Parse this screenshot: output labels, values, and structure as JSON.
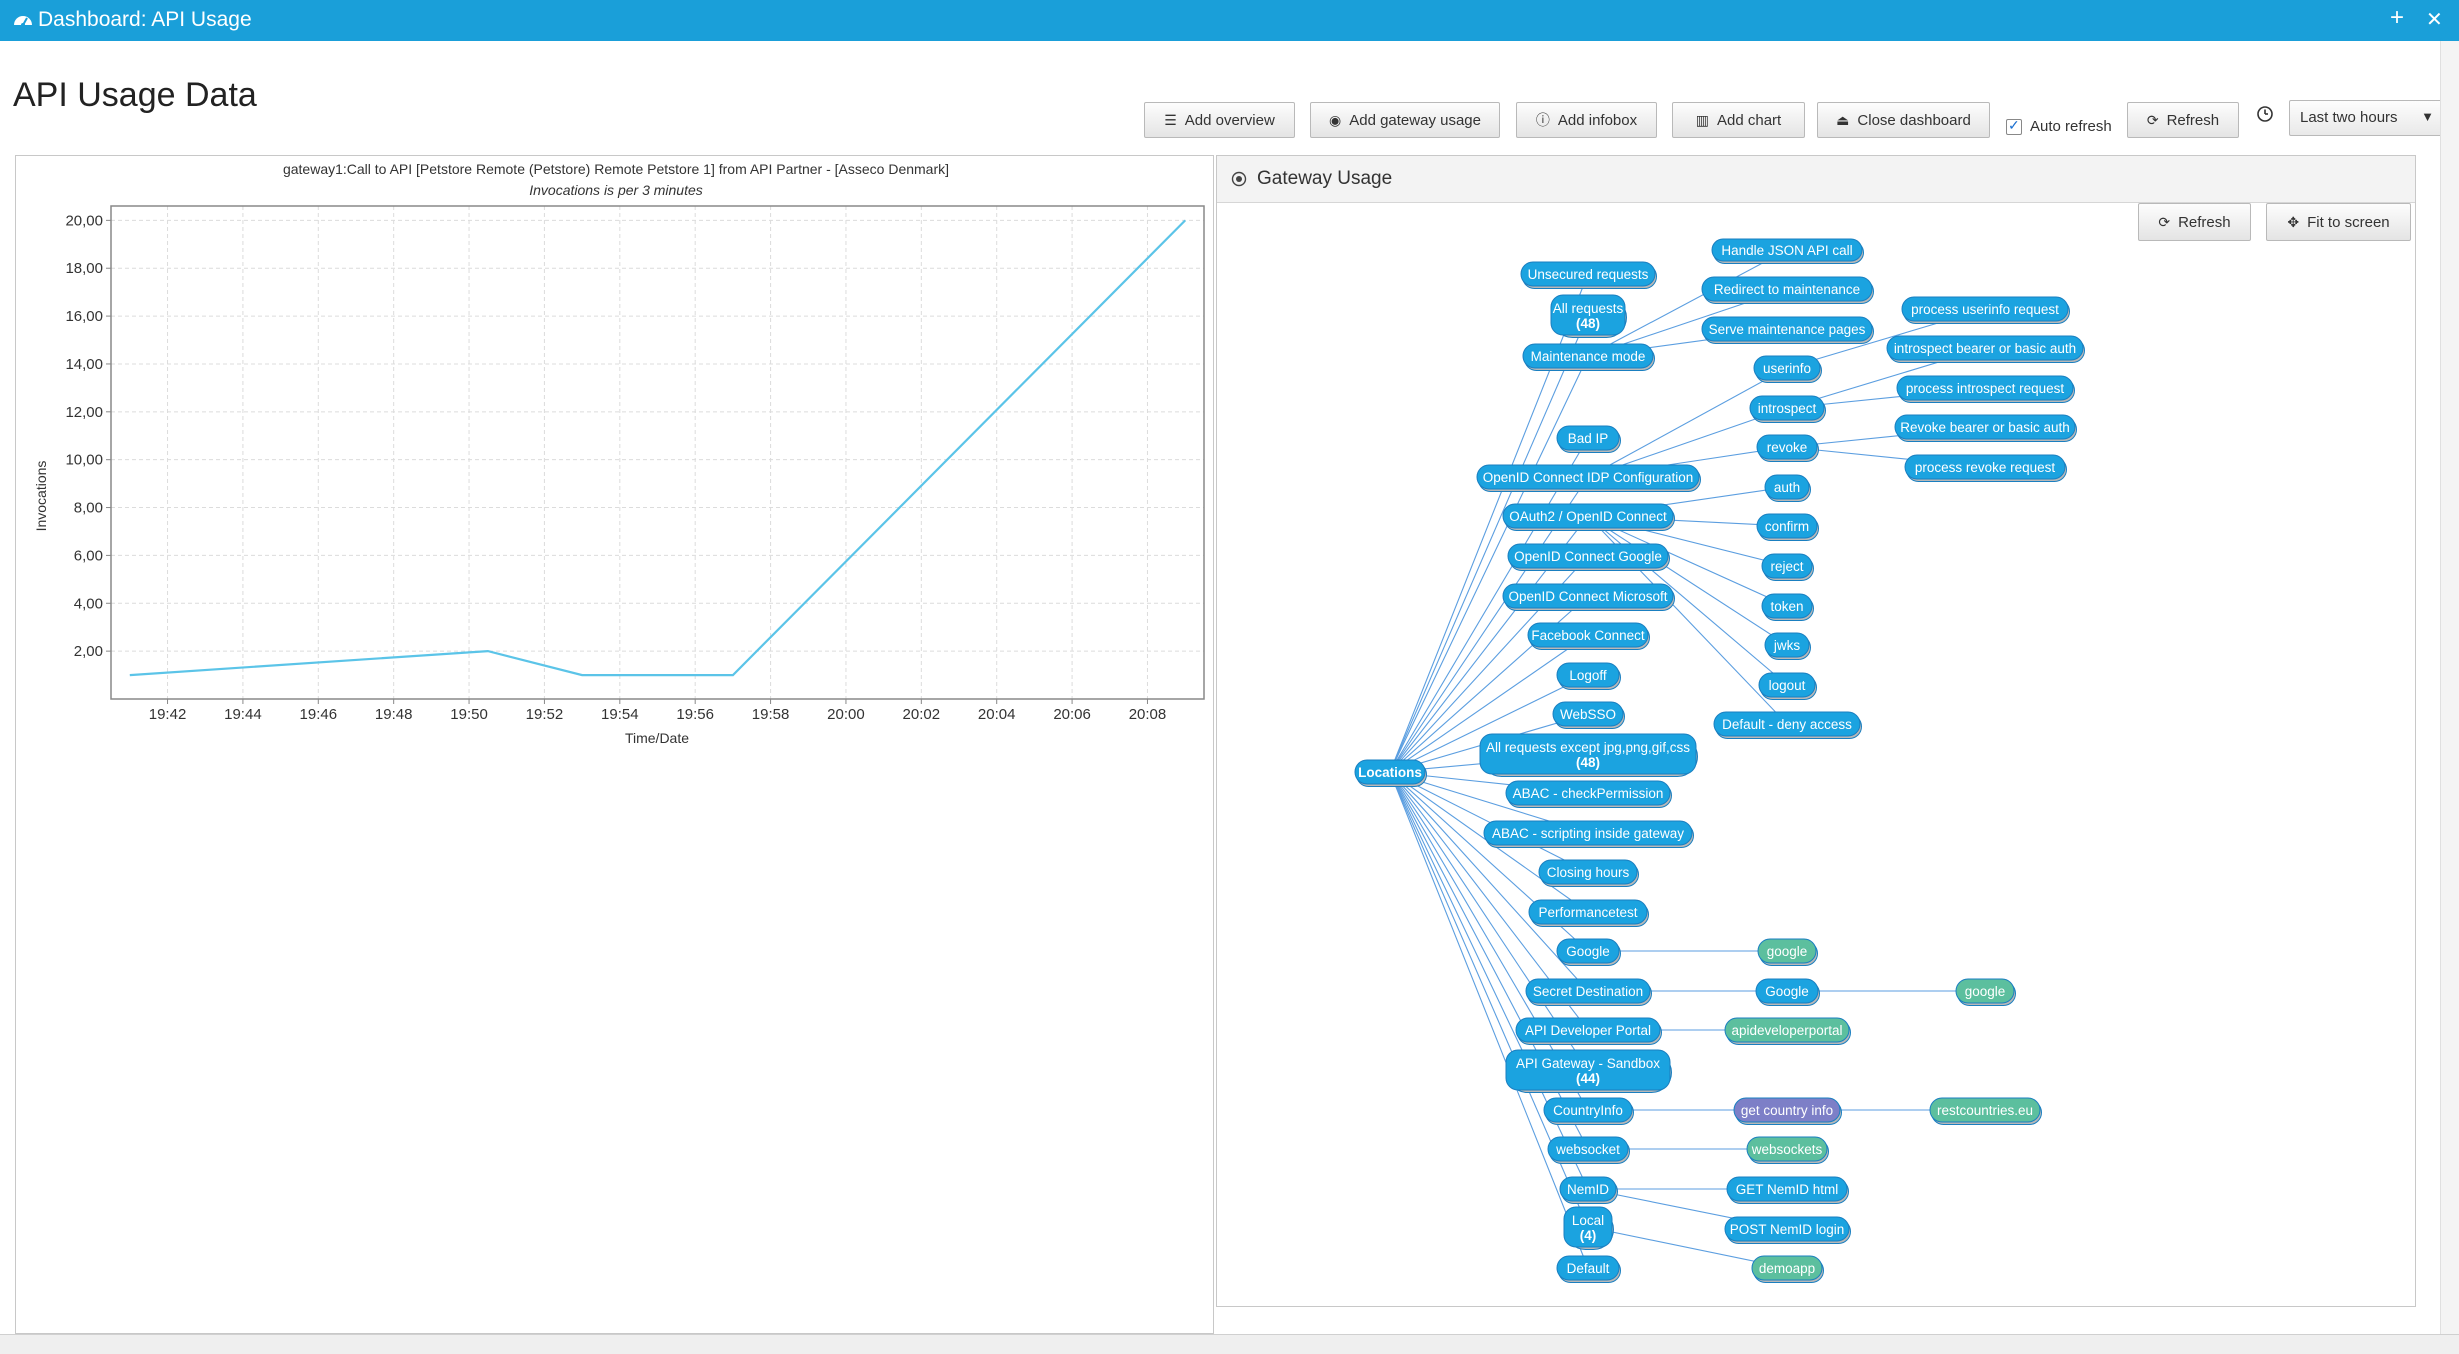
{
  "titlebar": {
    "title": "Dashboard: API Usage",
    "plus": "+",
    "close": "✕"
  },
  "page_title": "API Usage Data",
  "toolbar": {
    "add_overview": "Add overview",
    "add_gateway_usage": "Add gateway usage",
    "add_infobox": "Add infobox",
    "add_chart": "Add chart",
    "close_dashboard": "Close dashboard",
    "auto_refresh": "Auto refresh",
    "auto_refresh_checked": true,
    "refresh": "Refresh",
    "range_selected": "Last two hours"
  },
  "chart_data": {
    "type": "line",
    "title": "gateway1:Call to API [Petstore Remote (Petstore) Remote Petstore 1] from API Partner -  [Asseco Denmark]",
    "subtitle": "Invocations is per 3 minutes",
    "xlabel": "Time/Date",
    "ylabel": "Invocations",
    "x_ticks": [
      "19:42",
      "19:44",
      "19:46",
      "19:48",
      "19:50",
      "19:52",
      "19:54",
      "19:56",
      "19:58",
      "20:00",
      "20:02",
      "20:04",
      "20:06",
      "20:08"
    ],
    "y_ticks": [
      "2,00",
      "4,00",
      "6,00",
      "8,00",
      "10,00",
      "12,00",
      "14,00",
      "16,00",
      "18,00",
      "20,00"
    ],
    "xlim": [
      "19:40:30",
      "20:09:30"
    ],
    "ylim": [
      0,
      20.6
    ],
    "grid": true,
    "series": [
      {
        "x": [
          "19:41",
          "19:50:30",
          "19:53",
          "19:57",
          "20:09"
        ],
        "y": [
          1,
          2,
          1,
          1,
          20
        ]
      }
    ],
    "line_color": "#5bc4e8"
  },
  "gateway_usage": {
    "title": "Gateway Usage",
    "refresh": "Refresh",
    "fit_to_screen": "Fit to screen",
    "colors": {
      "location": "#1ba3e0",
      "api": "#23b0c8",
      "target": "#5cbf9e",
      "service": "#7d7fc7"
    },
    "nodes": [
      {
        "id": "locations",
        "label": "Locations",
        "kind": "root"
      },
      {
        "id": "unsecured",
        "label": "Unsecured requests",
        "kind": "location"
      },
      {
        "id": "allreq",
        "label": "All requests",
        "count": "(48)",
        "kind": "location"
      },
      {
        "id": "maint",
        "label": "Maintenance mode",
        "kind": "location"
      },
      {
        "id": "badip",
        "label": "Bad IP",
        "kind": "location"
      },
      {
        "id": "oidc_idp",
        "label": "OpenID Connect IDP Configuration",
        "kind": "location"
      },
      {
        "id": "oauth2",
        "label": "OAuth2 / OpenID Connect",
        "kind": "location"
      },
      {
        "id": "oidc_google",
        "label": "OpenID Connect Google",
        "kind": "location"
      },
      {
        "id": "oidc_ms",
        "label": "OpenID Connect Microsoft",
        "kind": "location"
      },
      {
        "id": "fb",
        "label": "Facebook Connect",
        "kind": "location"
      },
      {
        "id": "logoff",
        "label": "Logoff",
        "kind": "location"
      },
      {
        "id": "websso",
        "label": "WebSSO",
        "kind": "location"
      },
      {
        "id": "allexcept",
        "label": "All requests except jpg,png,gif,css",
        "count": "(48)",
        "kind": "location"
      },
      {
        "id": "abac1",
        "label": "ABAC - checkPermission",
        "kind": "location"
      },
      {
        "id": "abac2",
        "label": "ABAC - scripting inside gateway",
        "kind": "location"
      },
      {
        "id": "closing",
        "label": "Closing hours",
        "kind": "location"
      },
      {
        "id": "perf",
        "label": "Performancetest",
        "kind": "location"
      },
      {
        "id": "google_loc",
        "label": "Google",
        "kind": "location"
      },
      {
        "id": "secret",
        "label": "Secret Destination",
        "kind": "location"
      },
      {
        "id": "devportal",
        "label": "API Developer Portal",
        "kind": "location"
      },
      {
        "id": "sandbox",
        "label": "API Gateway - Sandbox",
        "count": "(44)",
        "kind": "location"
      },
      {
        "id": "countryinfo",
        "label": "CountryInfo",
        "kind": "location"
      },
      {
        "id": "websocket",
        "label": "websocket",
        "kind": "location"
      },
      {
        "id": "nemid",
        "label": "NemID",
        "kind": "location"
      },
      {
        "id": "local",
        "label": "Local",
        "count": "(4)",
        "kind": "location"
      },
      {
        "id": "default",
        "label": "Default",
        "kind": "location"
      },
      {
        "id": "handlejson",
        "label": "Handle JSON API call",
        "kind": "location"
      },
      {
        "id": "redirect",
        "label": "Redirect to maintenance",
        "kind": "location"
      },
      {
        "id": "servemaint",
        "label": "Serve maintenance pages",
        "kind": "location"
      },
      {
        "id": "userinfo",
        "label": "userinfo",
        "kind": "location"
      },
      {
        "id": "introspect",
        "label": "introspect",
        "kind": "location"
      },
      {
        "id": "revoke",
        "label": "revoke",
        "kind": "location"
      },
      {
        "id": "auth",
        "label": "auth",
        "kind": "location"
      },
      {
        "id": "confirm",
        "label": "confirm",
        "kind": "location"
      },
      {
        "id": "reject",
        "label": "reject",
        "kind": "location"
      },
      {
        "id": "token",
        "label": "token",
        "kind": "location"
      },
      {
        "id": "jwks",
        "label": "jwks",
        "kind": "location"
      },
      {
        "id": "logout",
        "label": "logout",
        "kind": "location"
      },
      {
        "id": "deny",
        "label": "Default - deny access",
        "kind": "location"
      },
      {
        "id": "google_sub",
        "label": "Google",
        "kind": "location"
      },
      {
        "id": "getnemid",
        "label": "GET NemID html",
        "kind": "location"
      },
      {
        "id": "postnemid",
        "label": "POST NemID login",
        "kind": "location"
      },
      {
        "id": "p_userinfo",
        "label": "process userinfo request",
        "kind": "location"
      },
      {
        "id": "p_introspect_auth",
        "label": "introspect bearer or basic auth",
        "kind": "location"
      },
      {
        "id": "p_introspect",
        "label": "process introspect request",
        "kind": "location"
      },
      {
        "id": "p_revoke_auth",
        "label": "Revoke bearer or basic auth",
        "kind": "location"
      },
      {
        "id": "p_revoke",
        "label": "process revoke request",
        "kind": "location"
      },
      {
        "id": "t_google1",
        "label": "google",
        "kind": "target"
      },
      {
        "id": "t_google2",
        "label": "google",
        "kind": "target"
      },
      {
        "id": "t_devportal",
        "label": "apideveloperportal",
        "kind": "target"
      },
      {
        "id": "s_getcountry",
        "label": "get country info",
        "kind": "service"
      },
      {
        "id": "t_restcountries",
        "label": "restcountries.eu",
        "kind": "target"
      },
      {
        "id": "t_websockets",
        "label": "websockets",
        "kind": "target"
      },
      {
        "id": "t_demoapp",
        "label": "demoapp",
        "kind": "target"
      }
    ],
    "edges": [
      [
        "locations",
        "unsecured"
      ],
      [
        "locations",
        "allreq"
      ],
      [
        "locations",
        "maint"
      ],
      [
        "locations",
        "badip"
      ],
      [
        "locations",
        "oidc_idp"
      ],
      [
        "locations",
        "oauth2"
      ],
      [
        "locations",
        "oidc_google"
      ],
      [
        "locations",
        "oidc_ms"
      ],
      [
        "locations",
        "fb"
      ],
      [
        "locations",
        "logoff"
      ],
      [
        "locations",
        "websso"
      ],
      [
        "locations",
        "allexcept"
      ],
      [
        "locations",
        "abac1"
      ],
      [
        "locations",
        "abac2"
      ],
      [
        "locations",
        "closing"
      ],
      [
        "locations",
        "perf"
      ],
      [
        "locations",
        "google_loc"
      ],
      [
        "locations",
        "secret"
      ],
      [
        "locations",
        "devportal"
      ],
      [
        "locations",
        "sandbox"
      ],
      [
        "locations",
        "countryinfo"
      ],
      [
        "locations",
        "websocket"
      ],
      [
        "locations",
        "nemid"
      ],
      [
        "locations",
        "local"
      ],
      [
        "locations",
        "default"
      ],
      [
        "maint",
        "handlejson"
      ],
      [
        "maint",
        "redirect"
      ],
      [
        "maint",
        "servemaint"
      ],
      [
        "oidc_idp",
        "userinfo"
      ],
      [
        "oidc_idp",
        "introspect"
      ],
      [
        "oidc_idp",
        "revoke"
      ],
      [
        "oauth2",
        "auth"
      ],
      [
        "oauth2",
        "confirm"
      ],
      [
        "oauth2",
        "reject"
      ],
      [
        "oauth2",
        "token"
      ],
      [
        "oauth2",
        "jwks"
      ],
      [
        "oauth2",
        "logout"
      ],
      [
        "oauth2",
        "deny"
      ],
      [
        "userinfo",
        "p_userinfo"
      ],
      [
        "introspect",
        "p_introspect_auth"
      ],
      [
        "introspect",
        "p_introspect"
      ],
      [
        "revoke",
        "p_revoke_auth"
      ],
      [
        "revoke",
        "p_revoke"
      ],
      [
        "google_loc",
        "t_google1"
      ],
      [
        "secret",
        "google_sub"
      ],
      [
        "google_sub",
        "t_google2"
      ],
      [
        "devportal",
        "t_devportal"
      ],
      [
        "countryinfo",
        "s_getcountry"
      ],
      [
        "s_getcountry",
        "t_restcountries"
      ],
      [
        "websocket",
        "t_websockets"
      ],
      [
        "nemid",
        "getnemid"
      ],
      [
        "nemid",
        "postnemid"
      ],
      [
        "local",
        "t_demoapp"
      ]
    ]
  }
}
